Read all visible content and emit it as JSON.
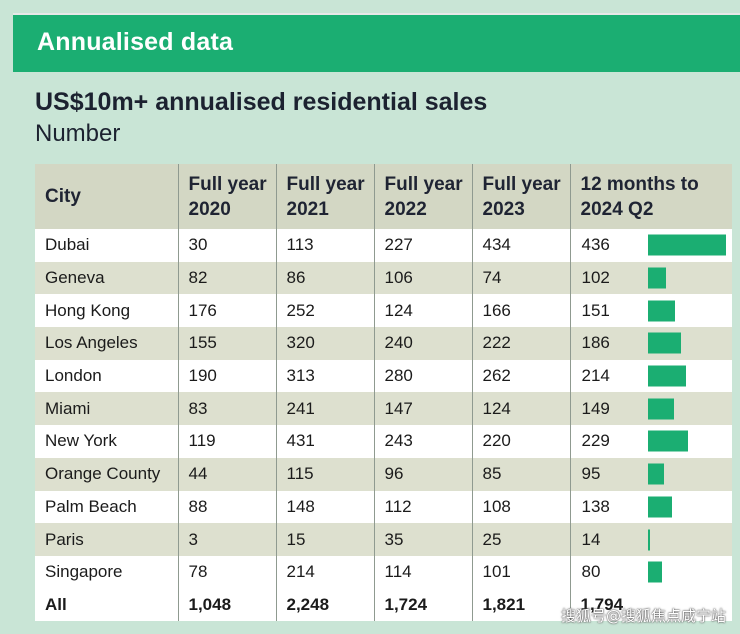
{
  "header": {
    "title": "Annualised data"
  },
  "chart_data": {
    "type": "table",
    "title": "US$10m+ annualised residential sales",
    "subtitle": "Number",
    "columns": [
      "City",
      "Full year 2020",
      "Full year 2021",
      "Full year 2022",
      "Full year 2023",
      "12 months to 2024 Q2"
    ],
    "column_lines": [
      [
        "City",
        ""
      ],
      [
        "Full year",
        "2020"
      ],
      [
        "Full year",
        "2021"
      ],
      [
        "Full year",
        "2022"
      ],
      [
        "Full year",
        "2023"
      ],
      [
        "12 months to",
        "2024 Q2"
      ]
    ],
    "rows": [
      {
        "city": "Dubai",
        "values": [
          "30",
          "113",
          "227",
          "434",
          "436"
        ],
        "bar": 436
      },
      {
        "city": "Geneva",
        "values": [
          "82",
          "86",
          "106",
          "74",
          "102"
        ],
        "bar": 102
      },
      {
        "city": "Hong Kong",
        "values": [
          "176",
          "252",
          "124",
          "166",
          "151"
        ],
        "bar": 151
      },
      {
        "city": "Los Angeles",
        "values": [
          "155",
          "320",
          "240",
          "222",
          "186"
        ],
        "bar": 186
      },
      {
        "city": "London",
        "values": [
          "190",
          "313",
          "280",
          "262",
          "214"
        ],
        "bar": 214
      },
      {
        "city": "Miami",
        "values": [
          "83",
          "241",
          "147",
          "124",
          "149"
        ],
        "bar": 149
      },
      {
        "city": "New York",
        "values": [
          "119",
          "431",
          "243",
          "220",
          "229"
        ],
        "bar": 229
      },
      {
        "city": "Orange County",
        "values": [
          "44",
          "115",
          "96",
          "85",
          "95"
        ],
        "bar": 95
      },
      {
        "city": "Palm Beach",
        "values": [
          "88",
          "148",
          "112",
          "108",
          "138"
        ],
        "bar": 138
      },
      {
        "city": "Paris",
        "values": [
          "3",
          "15",
          "35",
          "25",
          "14"
        ],
        "bar": 14
      },
      {
        "city": "Singapore",
        "values": [
          "78",
          "214",
          "114",
          "101",
          "80"
        ],
        "bar": 80
      }
    ],
    "total": {
      "city": "All",
      "values": [
        "1,048",
        "2,248",
        "1,724",
        "1,821",
        "1,794"
      ]
    },
    "bar_color": "#1bae72",
    "bar_max": 436
  },
  "watermark": "搜狐号@搜狐焦点咸宁站",
  "colors": {
    "background": "#c9e5d6",
    "header_green": "#1bae72",
    "row_shade": "#dde0cf",
    "head_shade": "#d3d7c4"
  }
}
